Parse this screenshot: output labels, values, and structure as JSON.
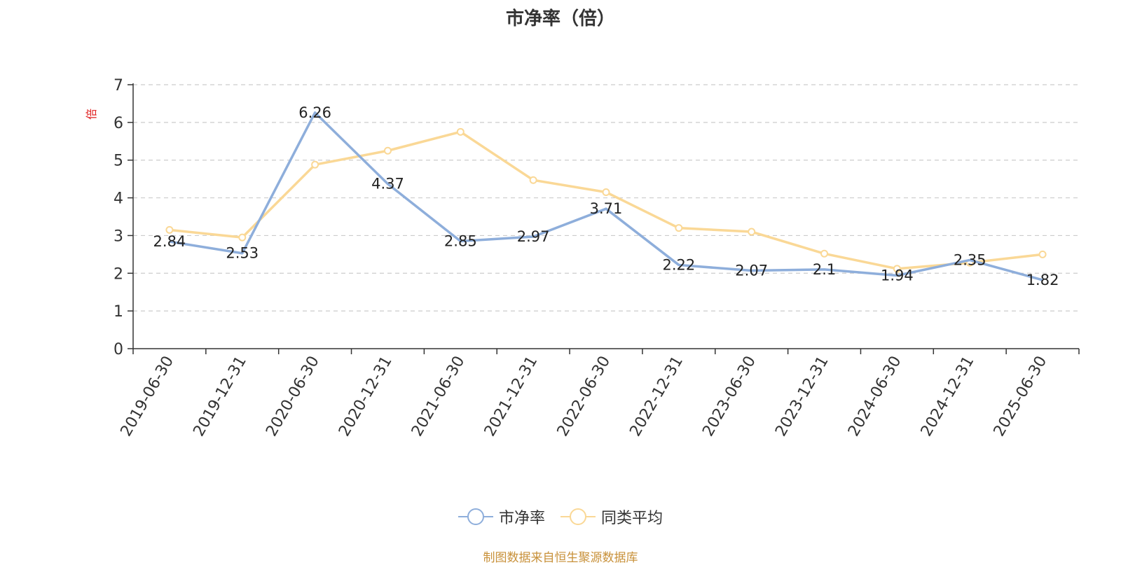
{
  "title": "市净率（倍）",
  "source_note": "制图数据来自恒生聚源数据库",
  "colors": {
    "series1": "#8eaedb",
    "series2": "#fad896",
    "axis": "#333333",
    "grid": "#cccccc",
    "unit": "#e02020",
    "source": "#c8913a"
  },
  "legend": [
    {
      "label": "市净率"
    },
    {
      "label": "同类平均"
    }
  ],
  "chart_data": {
    "type": "line",
    "title": "市净率（倍）",
    "ylabel": "倍",
    "xlabel": "",
    "ylim": [
      0,
      7
    ],
    "yticks": [
      0,
      1,
      2,
      3,
      4,
      5,
      6,
      7
    ],
    "grid": true,
    "legend_position": "bottom",
    "categories": [
      "2019-06-30",
      "2019-12-31",
      "2020-06-30",
      "2020-12-31",
      "2021-06-30",
      "2021-12-31",
      "2022-06-30",
      "2022-12-31",
      "2023-06-30",
      "2023-12-31",
      "2024-06-30",
      "2024-12-31",
      "2025-06-30"
    ],
    "series": [
      {
        "name": "市净率",
        "values": [
          2.84,
          2.53,
          6.26,
          4.37,
          2.85,
          2.97,
          3.71,
          2.22,
          2.07,
          2.1,
          1.94,
          2.35,
          1.82
        ],
        "labels": [
          "2.84",
          "2.53",
          "6.26",
          "4.37",
          "2.85",
          "2.97",
          "3.71",
          "2.22",
          "2.07",
          "2.1",
          "1.94",
          "2.35",
          "1.82"
        ]
      },
      {
        "name": "同类平均",
        "values": [
          3.15,
          2.95,
          4.88,
          5.25,
          5.75,
          4.47,
          4.15,
          3.2,
          3.1,
          2.52,
          2.12,
          2.28,
          2.5
        ]
      }
    ]
  }
}
